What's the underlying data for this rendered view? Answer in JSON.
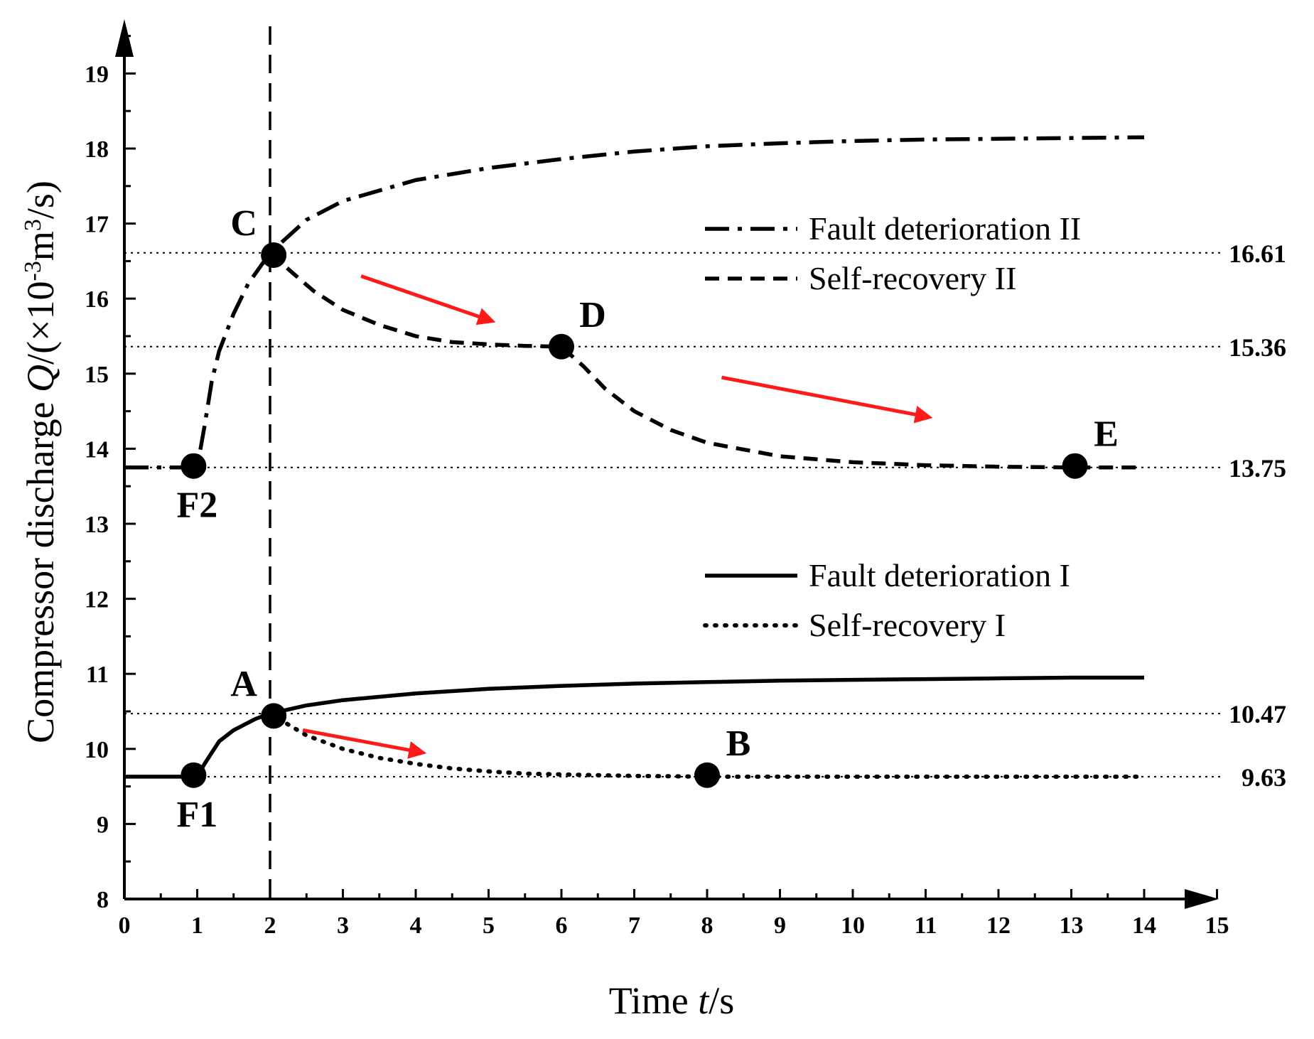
{
  "chart_data": {
    "type": "line",
    "xlabel_prefix": "Time ",
    "xlabel_var": "t",
    "xlabel_suffix": "/s",
    "ylabel_prefix": "Compressor discharge ",
    "ylabel_var": "Q",
    "ylabel_unit_a": "/(×10",
    "ylabel_exp1": "-3",
    "ylabel_unit_b": "m",
    "ylabel_exp2": "3",
    "ylabel_unit_c": "/s)",
    "xlim": [
      0,
      15
    ],
    "ylim": [
      8,
      19.6
    ],
    "x_ticks": [
      0,
      1,
      2,
      3,
      4,
      5,
      6,
      7,
      8,
      9,
      10,
      11,
      12,
      13,
      14,
      15
    ],
    "y_ticks": [
      8,
      9,
      10,
      11,
      12,
      13,
      14,
      15,
      16,
      17,
      18,
      19
    ],
    "x_tick_labels": [
      "0",
      "1",
      "2",
      "3",
      "4",
      "5",
      "6",
      "7",
      "8",
      "9",
      "10",
      "11",
      "12",
      "13",
      "14",
      "15"
    ],
    "y_tick_labels": [
      "8",
      "9",
      "10",
      "11",
      "12",
      "13",
      "14",
      "15",
      "16",
      "17",
      "18",
      "19"
    ],
    "vertical_line_x": 2,
    "reference_lines": [
      {
        "y": 16.61,
        "label": "16.61"
      },
      {
        "y": 15.36,
        "label": "15.36"
      },
      {
        "y": 13.75,
        "label": "13.75"
      },
      {
        "y": 10.47,
        "label": "10.47"
      },
      {
        "y": 9.63,
        "label": "9.63"
      }
    ],
    "series": [
      {
        "name": "Fault deterioration II",
        "style": "dash-dot",
        "x": [
          0,
          1,
          1.1,
          1.2,
          1.3,
          1.5,
          1.7,
          2,
          2.5,
          3,
          4,
          5,
          6,
          7,
          8,
          9,
          10,
          11,
          12,
          13,
          14
        ],
        "y": [
          13.75,
          13.75,
          14.3,
          14.9,
          15.3,
          15.8,
          16.2,
          16.61,
          17.05,
          17.3,
          17.58,
          17.74,
          17.86,
          17.96,
          18.03,
          18.07,
          18.1,
          18.12,
          18.13,
          18.14,
          18.15
        ]
      },
      {
        "name": "Self-recovery II",
        "style": "dashed",
        "x": [
          2,
          2.3,
          2.6,
          3,
          3.5,
          4,
          4.5,
          5,
          5.5,
          6,
          6.3,
          6.6,
          7,
          7.5,
          8,
          9,
          10,
          11,
          12,
          13,
          14
        ],
        "y": [
          16.61,
          16.35,
          16.1,
          15.85,
          15.65,
          15.5,
          15.42,
          15.39,
          15.37,
          15.36,
          15.1,
          14.8,
          14.5,
          14.25,
          14.08,
          13.9,
          13.82,
          13.78,
          13.76,
          13.75,
          13.75
        ]
      },
      {
        "name": "Fault deterioration I",
        "style": "solid",
        "x": [
          0,
          1,
          1.1,
          1.3,
          1.5,
          1.8,
          2,
          2.5,
          3,
          4,
          5,
          6,
          7,
          8,
          9,
          10,
          11,
          12,
          13,
          14
        ],
        "y": [
          9.63,
          9.63,
          9.8,
          10.1,
          10.25,
          10.4,
          10.47,
          10.58,
          10.65,
          10.74,
          10.8,
          10.84,
          10.87,
          10.89,
          10.91,
          10.92,
          10.93,
          10.94,
          10.95,
          10.95
        ]
      },
      {
        "name": "Self-recovery I",
        "style": "dotted",
        "x": [
          2,
          2.5,
          3,
          3.5,
          4,
          4.5,
          5,
          5.5,
          6,
          6.5,
          7,
          7.5,
          8,
          9,
          10,
          11,
          12,
          13,
          14
        ],
        "y": [
          10.47,
          10.18,
          10.0,
          9.88,
          9.8,
          9.74,
          9.7,
          9.67,
          9.66,
          9.65,
          9.64,
          9.635,
          9.63,
          9.63,
          9.63,
          9.63,
          9.63,
          9.63,
          9.63
        ]
      }
    ],
    "points": [
      {
        "label": "F1",
        "x": 0.95,
        "y": 9.65,
        "label_pos": "below"
      },
      {
        "label": "A",
        "x": 2.05,
        "y": 10.44,
        "label_pos": "upper-left"
      },
      {
        "label": "B",
        "x": 8.0,
        "y": 9.65,
        "label_pos": "upper-right"
      },
      {
        "label": "F2",
        "x": 0.95,
        "y": 13.77,
        "label_pos": "below"
      },
      {
        "label": "C",
        "x": 2.05,
        "y": 16.58,
        "label_pos": "upper-left"
      },
      {
        "label": "D",
        "x": 6.0,
        "y": 15.36,
        "label_pos": "upper-right"
      },
      {
        "label": "E",
        "x": 13.05,
        "y": 13.77,
        "label_pos": "upper-right"
      }
    ],
    "arrows": [
      {
        "x1": 2.45,
        "y1": 10.25,
        "x2": 4.1,
        "y2": 9.95
      },
      {
        "x1": 3.25,
        "y1": 16.3,
        "x2": 5.05,
        "y2": 15.7
      },
      {
        "x1": 8.2,
        "y1": 14.95,
        "x2": 11.05,
        "y2": 14.42
      }
    ],
    "arrow_color": "#ff1a1a",
    "legend": [
      {
        "label": "Fault deterioration II",
        "style": "dash-dot",
        "group": "upper"
      },
      {
        "label": "Self-recovery II",
        "style": "dashed",
        "group": "upper"
      },
      {
        "label": "Fault deterioration I",
        "style": "solid",
        "group": "lower"
      },
      {
        "label": "Self-recovery I",
        "style": "dotted",
        "group": "lower"
      }
    ]
  }
}
